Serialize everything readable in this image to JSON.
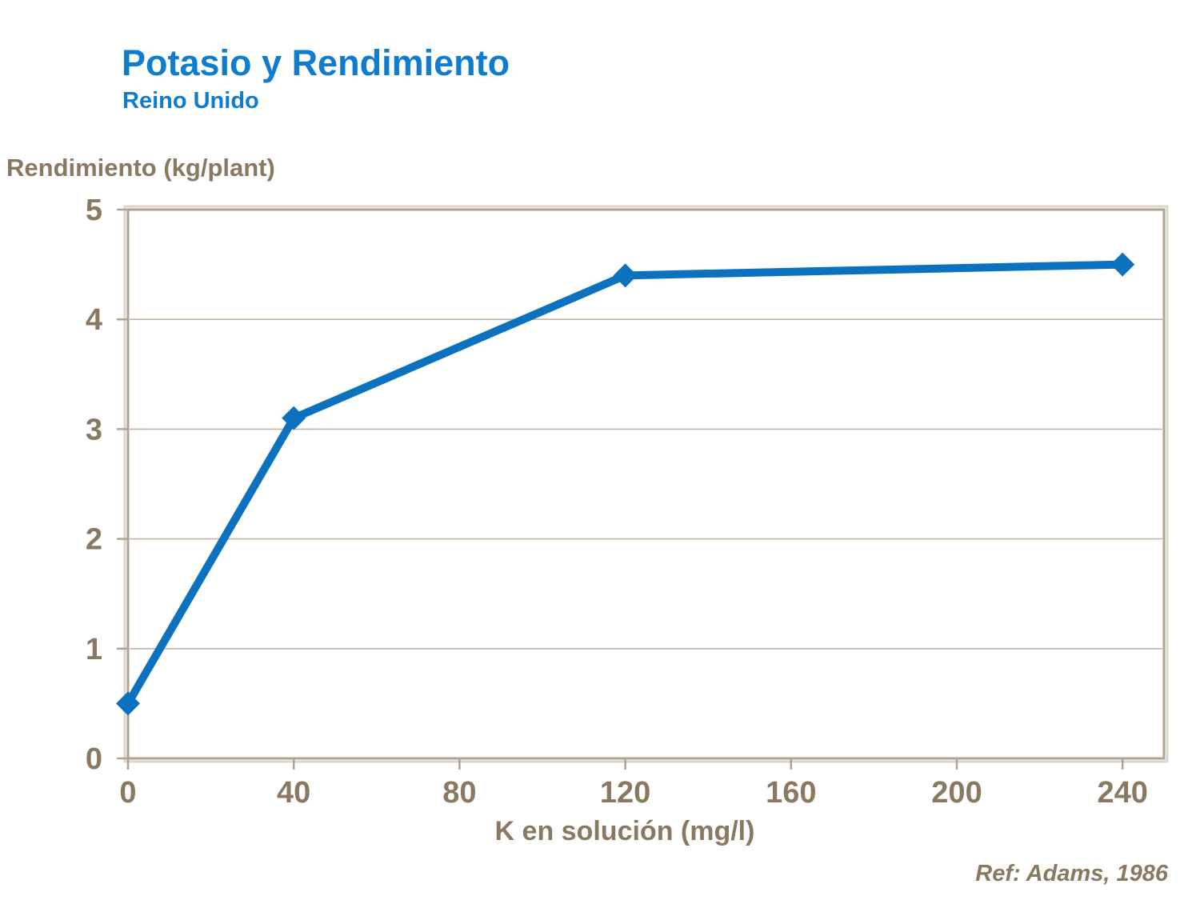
{
  "page": {
    "title": "Potasio y Rendimiento",
    "subtitle": "Reino Unido",
    "reference": "Ref: Adams, 1986"
  },
  "colors": {
    "title_blue": "#0f7cce",
    "line_blue": "#0c72c0",
    "axis_text_taupe": "#8a7861",
    "axis_frame": "#b1a291",
    "axis_frame_highlight": "#dcd6cc",
    "gridline": "#c1b4a4",
    "background": "#ffffff"
  },
  "chart_data": {
    "type": "line",
    "title": "Potasio y Rendimiento",
    "subtitle": "Reino Unido",
    "xlabel": "K en solución (mg/l)",
    "ylabel": "Rendimiento (kg/plant)",
    "series": [
      {
        "name": "Rendimiento",
        "x": [
          0,
          40,
          120,
          240
        ],
        "y": [
          0.5,
          3.1,
          4.4,
          4.5
        ]
      }
    ],
    "x_ticks": [
      0,
      40,
      80,
      120,
      160,
      200,
      240
    ],
    "y_ticks": [
      0,
      1,
      2,
      3,
      4,
      5
    ],
    "xlim": [
      0,
      250
    ],
    "ylim": [
      0,
      5
    ],
    "grid": "horizontal-major-only",
    "legend": "none",
    "marker": "diamond",
    "reference": "Ref: Adams, 1986"
  }
}
